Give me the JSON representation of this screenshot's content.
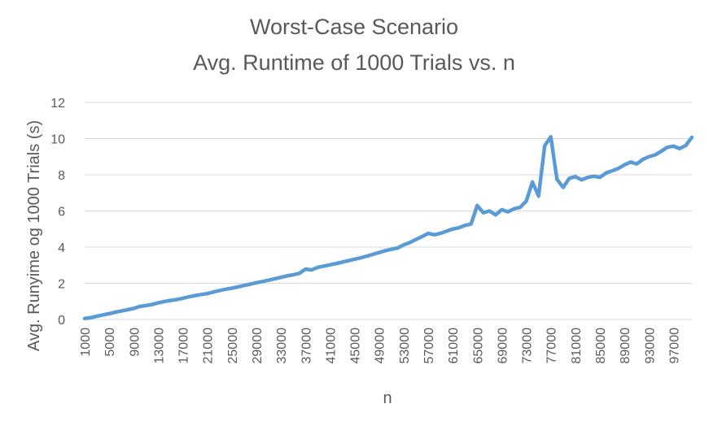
{
  "chart_data": {
    "type": "line",
    "title": "Worst-Case Scenario",
    "subtitle": "Avg. Runtime of 1000 Trials vs. n",
    "xlabel": "n",
    "ylabel": "Avg. Runyime og 1000 Trials (s)",
    "ylim": [
      0,
      12
    ],
    "yticks": [
      "0",
      "2",
      "4",
      "6",
      "8",
      "10",
      "12"
    ],
    "xlim": [
      1000,
      100000
    ],
    "xticks": [
      "1000",
      "5000",
      "9000",
      "13000",
      "17000",
      "21000",
      "25000",
      "29000",
      "33000",
      "37000",
      "41000",
      "45000",
      "49000",
      "53000",
      "57000",
      "61000",
      "65000",
      "69000",
      "73000",
      "77000",
      "81000",
      "85000",
      "89000",
      "93000",
      "97000"
    ],
    "grid": true,
    "legend": "none",
    "series": [
      {
        "color": "#5b9bd5",
        "x": [
          1000,
          2000,
          3000,
          4000,
          5000,
          6000,
          7000,
          8000,
          9000,
          10000,
          11000,
          12000,
          13000,
          14000,
          15000,
          16000,
          17000,
          18000,
          19000,
          20000,
          21000,
          22000,
          23000,
          24000,
          25000,
          26000,
          27000,
          28000,
          29000,
          30000,
          31000,
          32000,
          33000,
          34000,
          35000,
          36000,
          37000,
          38000,
          39000,
          40000,
          41000,
          42000,
          43000,
          44000,
          45000,
          46000,
          47000,
          48000,
          49000,
          50000,
          51000,
          52000,
          53000,
          54000,
          55000,
          56000,
          57000,
          58000,
          59000,
          60000,
          61000,
          62000,
          63000,
          64000,
          65000,
          66000,
          67000,
          68000,
          69000,
          70000,
          71000,
          72000,
          73000,
          74000,
          75000,
          76000,
          77000,
          78000,
          79000,
          80000,
          81000,
          82000,
          83000,
          84000,
          85000,
          86000,
          87000,
          88000,
          89000,
          90000,
          91000,
          92000,
          93000,
          94000,
          95000,
          96000,
          97000,
          98000,
          99000,
          100000
        ],
        "y": [
          0.05,
          0.1,
          0.18,
          0.25,
          0.32,
          0.4,
          0.47,
          0.54,
          0.61,
          0.72,
          0.77,
          0.83,
          0.92,
          0.99,
          1.05,
          1.1,
          1.17,
          1.25,
          1.32,
          1.38,
          1.43,
          1.52,
          1.6,
          1.67,
          1.73,
          1.8,
          1.88,
          1.95,
          2.03,
          2.1,
          2.17,
          2.25,
          2.33,
          2.41,
          2.47,
          2.55,
          2.78,
          2.74,
          2.88,
          2.95,
          3.02,
          3.09,
          3.17,
          3.25,
          3.33,
          3.41,
          3.5,
          3.6,
          3.7,
          3.8,
          3.88,
          3.95,
          4.12,
          4.25,
          4.42,
          4.58,
          4.76,
          4.68,
          4.76,
          4.88,
          5.0,
          5.07,
          5.2,
          5.28,
          6.3,
          5.9,
          6.0,
          5.78,
          6.07,
          5.95,
          6.12,
          6.2,
          6.55,
          7.6,
          6.82,
          9.6,
          10.1,
          7.75,
          7.3,
          7.8,
          7.9,
          7.72,
          7.85,
          7.92,
          7.86,
          8.1,
          8.22,
          8.35,
          8.55,
          8.7,
          8.6,
          8.85,
          9.0,
          9.1,
          9.3,
          9.52,
          9.58,
          9.45,
          9.62,
          10.07
        ]
      }
    ]
  }
}
